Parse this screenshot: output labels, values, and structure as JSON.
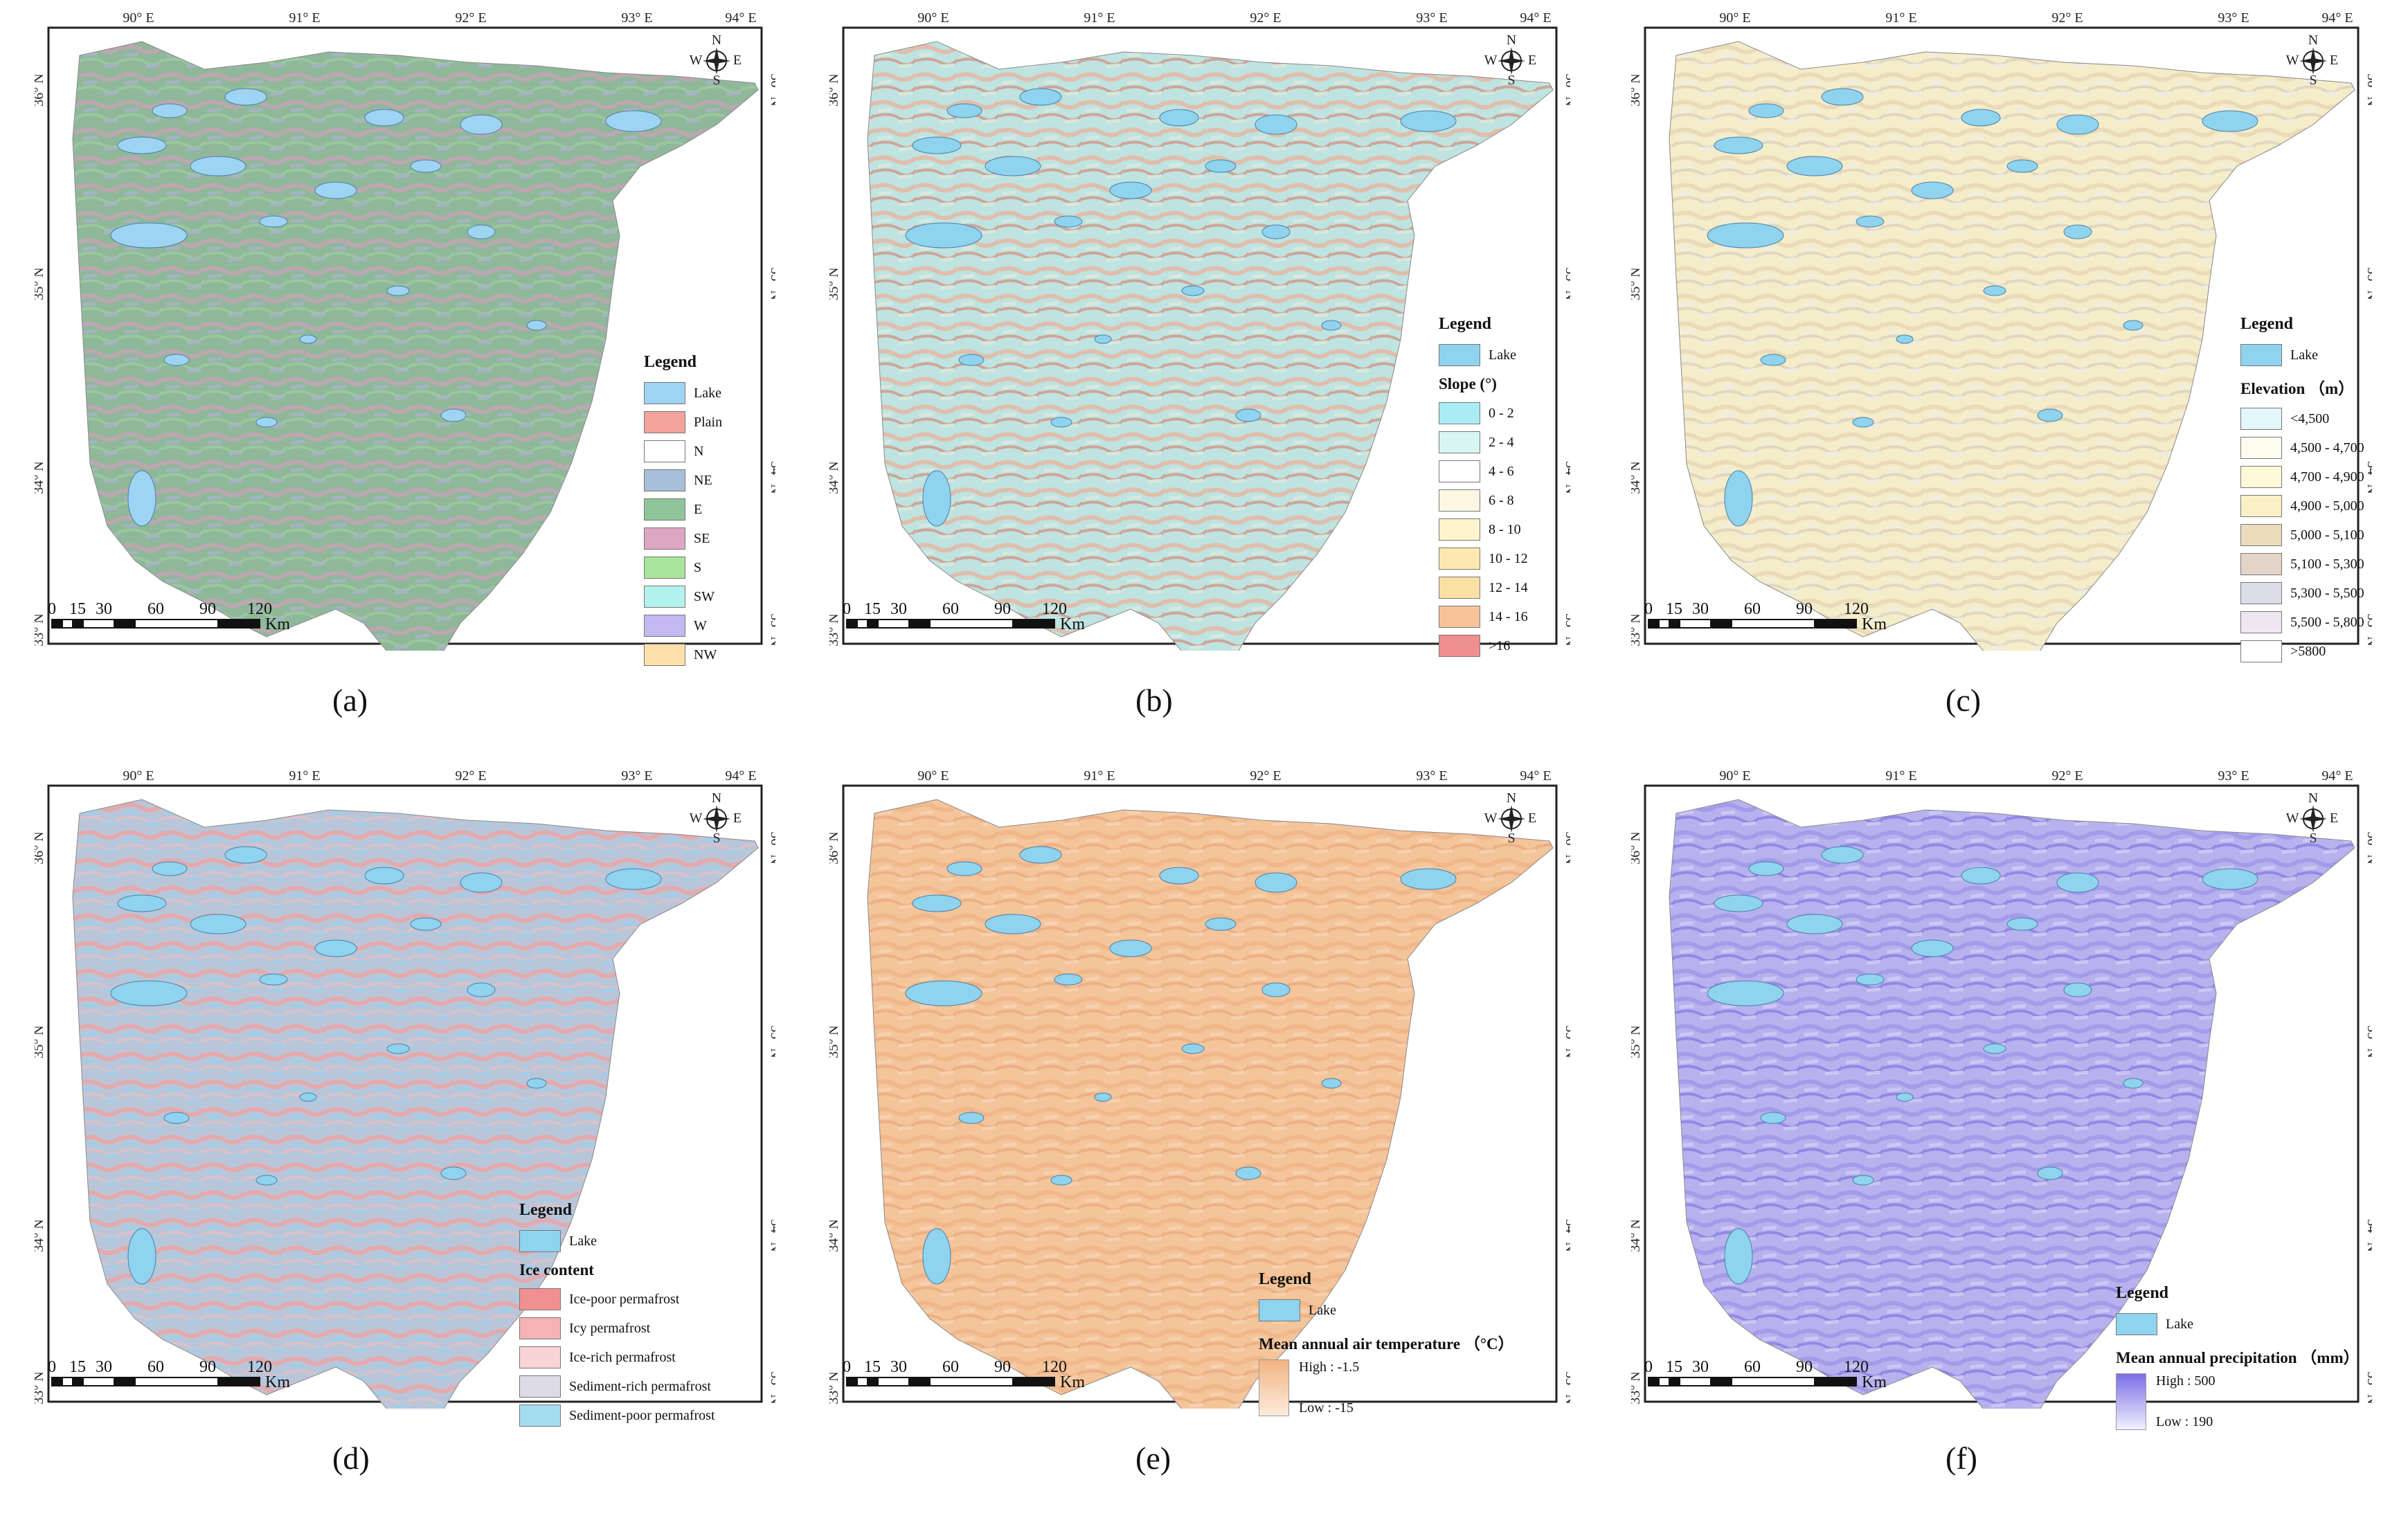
{
  "common": {
    "lon_labels": [
      "90° E",
      "91° E",
      "92° E",
      "93° E",
      "94° E"
    ],
    "lat_labels": [
      "36° N",
      "35° N",
      "34° N",
      "33° N"
    ],
    "compass": {
      "n": "N",
      "s": "S",
      "e": "E",
      "w": "W"
    },
    "scale": {
      "ticks": [
        "0",
        "15",
        "30",
        "60",
        "90",
        "120"
      ],
      "unit": "Km"
    }
  },
  "panels": [
    {
      "caption": "(a)",
      "fill_colors": [
        "#8fb89a",
        "#c7a3b5",
        "#a7b3c7",
        "#9fcf9f"
      ],
      "legend": {
        "title": "Legend",
        "items": [
          {
            "label": "Lake",
            "color": "#9fd3f2"
          },
          {
            "label": "Plain",
            "color": "#f4a39a"
          },
          {
            "label": "N",
            "color": "#ffffff"
          },
          {
            "label": "NE",
            "color": "#a7bfd8"
          },
          {
            "label": "E",
            "color": "#8fc49a"
          },
          {
            "label": "SE",
            "color": "#dda6c3"
          },
          {
            "label": "S",
            "color": "#a9e59a"
          },
          {
            "label": "SW",
            "color": "#b4f2ee"
          },
          {
            "label": "W",
            "color": "#c4b8f2"
          },
          {
            "label": "NW",
            "color": "#fde0aa"
          }
        ]
      }
    },
    {
      "caption": "(b)",
      "fill_colors": [
        "#bfe3e0",
        "#e8b59f",
        "#d7eadf",
        "#d48a7b"
      ],
      "legend": {
        "title": "Legend",
        "lake": {
          "label": "Lake",
          "color": "#8fd3ee"
        },
        "subtitle": "Slope (°)",
        "items": [
          {
            "label": "0 - 2",
            "color": "#a9ecf4"
          },
          {
            "label": "2 - 4",
            "color": "#d8f5f4"
          },
          {
            "label": "4 - 6",
            "color": "#ffffff"
          },
          {
            "label": "6 - 8",
            "color": "#fcf6e3"
          },
          {
            "label": "8 - 10",
            "color": "#fff4cd"
          },
          {
            "label": "10 - 12",
            "color": "#fde9b0"
          },
          {
            "label": "12 - 14",
            "color": "#fbe0a3"
          },
          {
            "label": "14 - 16",
            "color": "#f7c49a"
          },
          {
            "label": ">16",
            "color": "#ef8f8f"
          }
        ]
      }
    },
    {
      "caption": "(c)",
      "fill_colors": [
        "#f5ecc9",
        "#e7d7b4",
        "#eeeee2",
        "#d8cfc0"
      ],
      "legend": {
        "title": "Legend",
        "lake": {
          "label": "Lake",
          "color": "#8fd3ee"
        },
        "subtitle": "Elevation （m）",
        "items": [
          {
            "label": "<4,500",
            "color": "#e2f6fb"
          },
          {
            "label": "4,500 - 4,700",
            "color": "#fffbef"
          },
          {
            "label": "4,700 - 4,900",
            "color": "#fff8d9"
          },
          {
            "label": "4,900 - 5,000",
            "color": "#fbefc8"
          },
          {
            "label": "5,000 - 5,100",
            "color": "#ecdcbc"
          },
          {
            "label": "5,100 - 5,300",
            "color": "#e2d4c7"
          },
          {
            "label": "5,300 - 5,500",
            "color": "#dcdde9"
          },
          {
            "label": "5,500 - 5,800",
            "color": "#efe6f2"
          },
          {
            "label": ">5800",
            "color": "#ffffff"
          }
        ]
      }
    },
    {
      "caption": "(d)",
      "fill_colors": [
        "#b9c6d9",
        "#f0a1a1",
        "#9fd0ea",
        "#e8c0c4"
      ],
      "legend": {
        "title": "Legend",
        "lake": {
          "label": "Lake",
          "color": "#8fd3ee"
        },
        "subtitle": "Ice content",
        "items": [
          {
            "label": "Ice-poor permafrost",
            "color": "#f19090"
          },
          {
            "label": "Icy permafrost",
            "color": "#f5b3b3"
          },
          {
            "label": "Ice-rich permafrost",
            "color": "#f9d4d4"
          },
          {
            "label": "Sediment-rich permafrost",
            "color": "#dcdbe6"
          },
          {
            "label": "Sediment-poor permafrost",
            "color": "#a5dcf0"
          }
        ]
      }
    },
    {
      "caption": "(e)",
      "fill_colors": [
        "#f4c49a",
        "#f0b486",
        "#f7d2b2",
        "#e9a97c"
      ],
      "legend": {
        "title": "Legend",
        "lake": {
          "label": "Lake",
          "color": "#8fd3ee"
        },
        "subtitle": "Mean annual air temperature （°C）",
        "ramp_high": "High : -1.5",
        "ramp_low": "Low : -15",
        "ramp_colors": [
          "#f3b483",
          "#fcebdc"
        ]
      }
    },
    {
      "caption": "(f)",
      "fill_colors": [
        "#b7b2ee",
        "#9d96e8",
        "#cfcaf4",
        "#8078e0"
      ],
      "legend": {
        "title": "Legend",
        "lake": {
          "label": "Lake",
          "color": "#8fd3ee"
        },
        "subtitle": "Mean annual precipitation （mm）",
        "ramp_high": "High : 500",
        "ramp_low": "Low : 190",
        "ramp_colors": [
          "#7c6fe6",
          "#f1efff"
        ]
      }
    }
  ]
}
